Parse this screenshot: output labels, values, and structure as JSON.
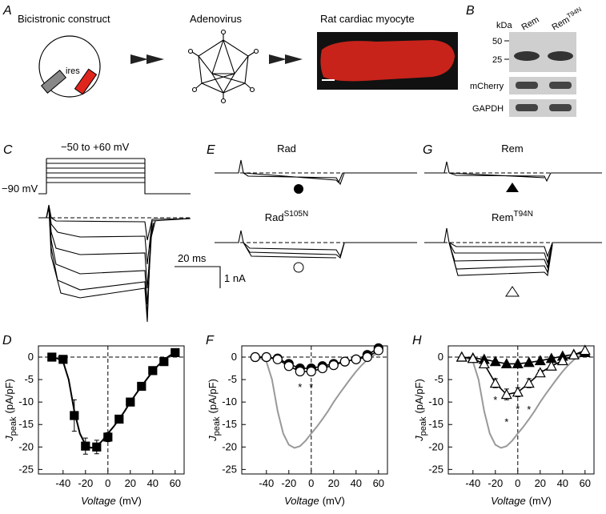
{
  "panels": {
    "A": {
      "letter": "A",
      "construct": "Bicistronic construct",
      "ires": "ires",
      "virus": "Adenovirus",
      "cell": "Rat cardiac myocyte"
    },
    "B": {
      "letter": "B",
      "kda": "kDa",
      "marker_50": "50",
      "marker_25": "25",
      "lane1": "Rem",
      "lane2": {
        "main": "Rem",
        "sup": "T94N"
      },
      "row2": "mCherry",
      "row3": "GAPDH"
    },
    "C": {
      "letter": "C",
      "steps": "−50 to +60 mV",
      "hold": "−90 mV"
    },
    "E": {
      "letter": "E",
      "top": "Rad",
      "bottom": {
        "main": "Rad",
        "sup": "S105N"
      }
    },
    "G": {
      "letter": "G",
      "top": "Rem",
      "bottom": {
        "main": "Rem",
        "sup": "T94N"
      }
    },
    "scale": {
      "time": "20 ms",
      "current": "1 nA"
    }
  },
  "chart_data": [
    {
      "type": "scatter",
      "panel_label": "D",
      "x": [
        -50,
        -40,
        -30,
        -20,
        -10,
        0,
        10,
        20,
        30,
        40,
        50,
        60
      ],
      "series": [
        {
          "values": [
            0,
            -0.5,
            -13,
            -19.8,
            -20,
            -17.8,
            -13.8,
            -10,
            -6.5,
            -3,
            -1,
            1
          ],
          "errors": [
            null,
            null,
            3.5,
            1.8,
            1.5,
            1,
            0.8,
            null,
            null,
            null,
            null,
            null
          ],
          "marker": "square",
          "color": "#000000",
          "fill": "#000000",
          "line": false
        }
      ],
      "fit": {
        "x": [
          -50,
          -45,
          -40,
          -35,
          -30,
          -25,
          -20,
          -15,
          -10,
          -5,
          0,
          5,
          10,
          15,
          20,
          25,
          30,
          35,
          40,
          45,
          50,
          55,
          60
        ],
        "values": [
          0,
          -0.3,
          -1,
          -5,
          -12,
          -17,
          -19.5,
          -20.2,
          -19.8,
          -18.6,
          -17,
          -15.5,
          -13.8,
          -12,
          -10,
          -8.2,
          -6.5,
          -4.8,
          -3.2,
          -1.8,
          -0.6,
          0.3,
          1
        ],
        "color": "#000000"
      },
      "xlim": [
        -62,
        68
      ],
      "ylim": [
        -26,
        2.5
      ],
      "xticks": [
        -40,
        -20,
        0,
        20,
        40,
        60
      ],
      "yticks": [
        0,
        -5,
        -10,
        -15,
        -20,
        -25
      ],
      "x_label": {
        "main": "Voltage",
        "unit": "(mV)"
      },
      "y_label": {
        "main": "J",
        "sub": "peak",
        "unit": "(pA/pF)"
      }
    },
    {
      "type": "scatter",
      "panel_label": "F",
      "x": [
        -50,
        -40,
        -30,
        -20,
        -10,
        0,
        10,
        20,
        30,
        40,
        50,
        60
      ],
      "series": [
        {
          "values": [
            0,
            0,
            -0.3,
            -1.5,
            -2.5,
            -2.5,
            -2,
            -1.5,
            -1,
            -0.5,
            0.5,
            2
          ],
          "errors": [
            null,
            null,
            null,
            null,
            0.5,
            0.5,
            null,
            null,
            null,
            null,
            null,
            null
          ],
          "marker": "circle",
          "color": "#000000",
          "fill": "#000000",
          "line": true
        },
        {
          "values": [
            0,
            0,
            -0.5,
            -2,
            -3.2,
            -3.2,
            -2.5,
            -1.8,
            -1,
            -0.5,
            0,
            1.5
          ],
          "errors": [
            null,
            null,
            null,
            0.5,
            0.7,
            0.7,
            0.5,
            null,
            null,
            null,
            null,
            null
          ],
          "marker": "circle",
          "color": "#000000",
          "fill": "#ffffff",
          "line": true
        }
      ],
      "fit": {
        "x": [
          -50,
          -45,
          -40,
          -35,
          -30,
          -25,
          -20,
          -15,
          -10,
          -5,
          0,
          5,
          10,
          15,
          20,
          25,
          30,
          35,
          40,
          45,
          50,
          55,
          60
        ],
        "values": [
          0,
          -0.3,
          -1,
          -5,
          -12,
          -17,
          -19.5,
          -20.2,
          -19.8,
          -18.6,
          -17,
          -15.5,
          -13.8,
          -12,
          -10,
          -8.2,
          -6.5,
          -4.8,
          -3.2,
          -1.8,
          -0.6,
          0.3,
          1
        ],
        "color": "#999999"
      },
      "significance": {
        "label": "*",
        "x": [
          -10,
          0
        ]
      },
      "xlim": [
        -62,
        68
      ],
      "ylim": [
        -26,
        2.5
      ],
      "xticks": [
        -40,
        -20,
        0,
        20,
        40,
        60
      ],
      "yticks": [
        0,
        -5,
        -10,
        -15,
        -20,
        -25
      ],
      "x_label": {
        "main": "Voltage",
        "unit": "(mV)"
      },
      "y_label": {
        "main": "J",
        "sub": "peak",
        "unit": "(pA/pF)"
      }
    },
    {
      "type": "scatter",
      "panel_label": "H",
      "x": [
        -50,
        -40,
        -30,
        -20,
        -10,
        0,
        10,
        20,
        30,
        40,
        50,
        60
      ],
      "series": [
        {
          "values": [
            0,
            -0.2,
            -0.5,
            -1,
            -1.5,
            -1.5,
            -1.2,
            -0.8,
            -0.3,
            0.2,
            0.6,
            1
          ],
          "errors": [
            null,
            null,
            null,
            null,
            null,
            null,
            null,
            null,
            null,
            null,
            null,
            null
          ],
          "marker": "triangle",
          "color": "#000000",
          "fill": "#000000",
          "line": true
        },
        {
          "values": [
            0,
            -0.3,
            -1.5,
            -5.8,
            -8.3,
            -7.8,
            -5.8,
            -3.5,
            -2,
            -0.8,
            0.5,
            1.5
          ],
          "errors": [
            null,
            null,
            0.8,
            1,
            1.2,
            1,
            1,
            0.6,
            null,
            null,
            null,
            null
          ],
          "marker": "triangle",
          "color": "#000000",
          "fill": "#ffffff",
          "line": true
        }
      ],
      "fit": {
        "x": [
          -50,
          -45,
          -40,
          -35,
          -30,
          -25,
          -20,
          -15,
          -10,
          -5,
          0,
          5,
          10,
          15,
          20,
          25,
          30,
          35,
          40,
          45,
          50,
          55,
          60
        ],
        "values": [
          0,
          -0.3,
          -1,
          -5,
          -12,
          -17,
          -19.5,
          -20.2,
          -19.8,
          -18.6,
          -17,
          -15.5,
          -13.8,
          -12,
          -10,
          -8.2,
          -6.5,
          -4.8,
          -3.2,
          -1.8,
          -0.6,
          0.3,
          1
        ],
        "color": "#999999"
      },
      "significance": {
        "label": "*",
        "x": [
          -20,
          -10,
          0,
          10
        ]
      },
      "xlim": [
        -62,
        68
      ],
      "ylim": [
        -26,
        2.5
      ],
      "xticks": [
        -40,
        -20,
        0,
        20,
        40,
        60
      ],
      "yticks": [
        0,
        -5,
        -10,
        -15,
        -20,
        -25
      ],
      "x_label": {
        "main": "Voltage",
        "unit": "(mV)"
      },
      "y_label": {
        "main": "J",
        "sub": "peak",
        "unit": "(pA/pF)"
      }
    }
  ]
}
